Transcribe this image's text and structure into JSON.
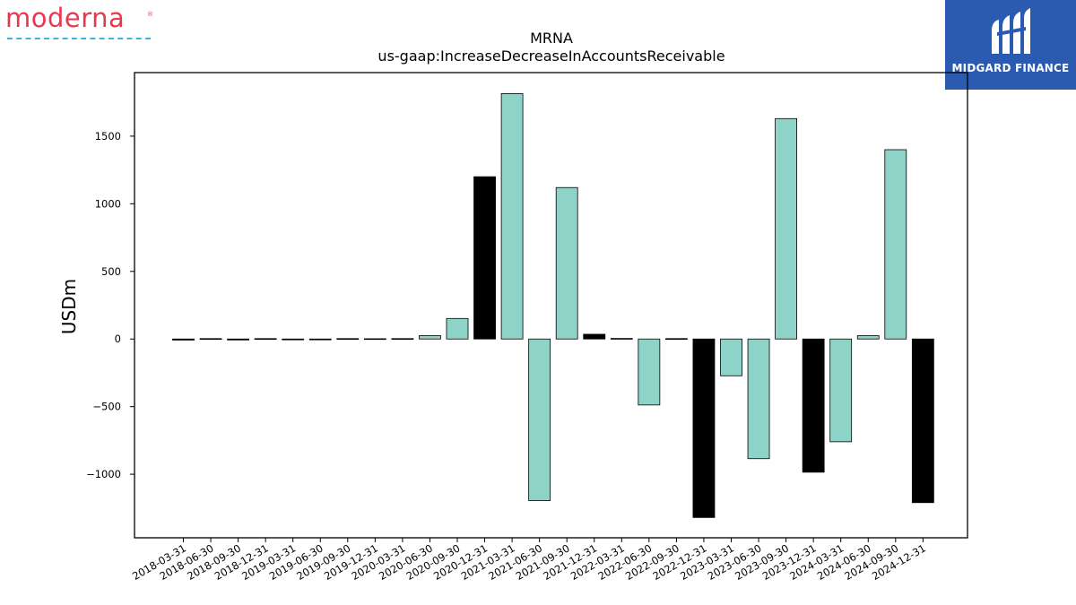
{
  "logos": {
    "left_word": "moderna",
    "left_mark": "®",
    "right_text": "MIDGARD FINANCE"
  },
  "colors": {
    "increase": "#8dd3c7",
    "decrease": "#000000",
    "moderna_red": "#e8384f",
    "midgard_blue": "#2b5bb0"
  },
  "chart_data": {
    "type": "bar",
    "title": "MRNA",
    "subtitle": "us-gaap:IncreaseDecreaseInAccountsReceivable",
    "xlabel": "",
    "ylabel": "USDm",
    "ylim": [
      -1470,
      1970
    ],
    "yticks": [
      -1000,
      -500,
      0,
      500,
      1000,
      1500
    ],
    "ytick_labels": [
      "−1000",
      "−500",
      "0",
      "500",
      "1000",
      "1500"
    ],
    "grid": false,
    "categories": [
      "2018-03-31",
      "2018-06-30",
      "2018-09-30",
      "2018-12-31",
      "2019-03-31",
      "2019-06-30",
      "2019-09-30",
      "2019-12-31",
      "2020-03-31",
      "2020-06-30",
      "2020-09-30",
      "2020-12-31",
      "2021-03-31",
      "2021-06-30",
      "2021-09-30",
      "2021-12-31",
      "2022-03-31",
      "2022-06-30",
      "2022-09-30",
      "2022-12-31",
      "2023-03-31",
      "2023-06-30",
      "2023-09-30",
      "2023-12-31",
      "2024-03-31",
      "2024-06-30",
      "2024-09-30",
      "2024-12-31"
    ],
    "values": [
      -8,
      3,
      -7,
      3,
      -6,
      -6,
      3,
      2,
      3,
      25,
      152,
      1200,
      1815,
      -1195,
      1120,
      35,
      4,
      -488,
      3,
      -1320,
      -272,
      -885,
      1630,
      -985,
      -760,
      25,
      1400,
      -1210
    ],
    "bar_colors": [
      "decrease",
      "increase",
      "decrease",
      "increase",
      "decrease",
      "decrease",
      "increase",
      "increase",
      "increase",
      "increase",
      "increase",
      "decrease",
      "increase",
      "increase",
      "increase",
      "decrease",
      "increase",
      "increase",
      "increase",
      "decrease",
      "increase",
      "increase",
      "increase",
      "decrease",
      "increase",
      "increase",
      "increase",
      "decrease"
    ]
  }
}
